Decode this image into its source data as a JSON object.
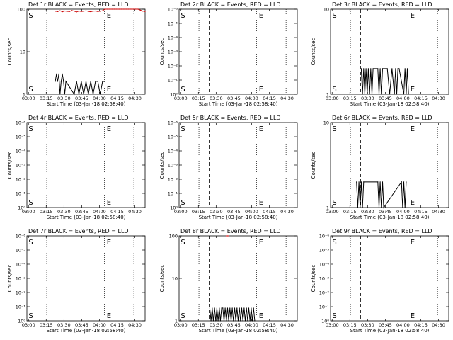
{
  "chart_data": [
    {
      "type": "line",
      "title": "Det 1r BLACK = Events, RED = LLD",
      "xlabel": "Start Time (03-Jan-18 02:58:40)",
      "ylabel": "Counts/sec",
      "ylog": true,
      "ylim": [
        1,
        100
      ],
      "yticks": [
        "1",
        "10",
        "100"
      ],
      "xticks": [
        "03:00",
        "03:15",
        "03:30",
        "03:45",
        "04:00",
        "04:15",
        "04:30"
      ],
      "xlim_min": [
        0,
        100
      ],
      "dotted_lines_min": [
        16.8,
        65.5,
        90.5
      ],
      "dashed_lines_min": [
        25.5
      ],
      "markers": [
        {
          "label": "S",
          "x_min": 0.2
        },
        {
          "label": "E",
          "x_min": 67.5
        }
      ],
      "series": [
        {
          "name": "Events",
          "color": "#000000",
          "x": [
            24,
            25,
            26,
            27,
            28,
            29,
            30,
            31,
            32,
            33,
            40,
            42,
            44,
            46,
            48,
            50,
            52,
            54,
            56,
            58,
            60,
            62,
            64,
            65
          ],
          "y": [
            2,
            3,
            2,
            3,
            1,
            2,
            3,
            2,
            1,
            2,
            1,
            2,
            1,
            2,
            1,
            2,
            1,
            2,
            1,
            2,
            2,
            1,
            2,
            2
          ]
        },
        {
          "name": "LLD",
          "color": "#cc0000",
          "x": [
            24,
            26,
            28,
            30,
            32,
            34,
            36,
            38,
            40,
            42,
            44,
            46,
            48,
            50,
            52,
            54,
            56,
            58,
            60,
            62,
            64,
            66,
            68,
            70,
            72,
            74,
            76,
            78,
            80,
            82,
            84,
            86,
            88,
            90,
            92,
            94,
            96,
            98,
            100
          ],
          "y": [
            90,
            88,
            92,
            87,
            91,
            89,
            88,
            93,
            90,
            86,
            91,
            88,
            90,
            92,
            89,
            87,
            90,
            91,
            88,
            90,
            92,
            100,
            100,
            100,
            100,
            100,
            100,
            100,
            100,
            100,
            100,
            100,
            100,
            100,
            100,
            100,
            95,
            90,
            88
          ]
        }
      ]
    },
    {
      "type": "line",
      "title": "Det 2r BLACK = Events, RED = LLD",
      "xlabel": "Start Time (03-Jan-18 02:58:40)",
      "ylabel": "Counts/sec",
      "ylog": true,
      "ylim": [
        0.8,
        1e-06
      ],
      "yticks": [
        "10⁰",
        "10⁻¹",
        "10⁻²",
        "10⁻³",
        "10⁻⁴",
        "10⁻⁵",
        "10⁻⁶"
      ],
      "xticks": [
        "03:00",
        "03:15",
        "03:30",
        "03:45",
        "04:00",
        "04:15",
        "04:30"
      ],
      "xlim_min": [
        0,
        100
      ],
      "dotted_lines_min": [
        16.8,
        65.5,
        90.5
      ],
      "dashed_lines_min": [
        25.5
      ],
      "markers": [
        {
          "label": "S",
          "x_min": 0.2
        },
        {
          "label": "E",
          "x_min": 67.5
        }
      ],
      "series": []
    },
    {
      "type": "line",
      "title": "Det 3r BLACK = Events, RED = LLD",
      "xlabel": "Start Time (03-Jan-18 02:58:40)",
      "ylabel": "Counts/sec",
      "ylog": true,
      "ylim": [
        1,
        10
      ],
      "yticks": [
        "1",
        "10"
      ],
      "xticks": [
        "03:00",
        "03:15",
        "03:30",
        "03:45",
        "04:00",
        "04:15",
        "04:30"
      ],
      "xlim_min": [
        0,
        100
      ],
      "dotted_lines_min": [
        16.8,
        65.5,
        90.5
      ],
      "dashed_lines_min": [
        25.5
      ],
      "markers": [
        {
          "label": "S",
          "x_min": 0.2
        },
        {
          "label": "E",
          "x_min": 67.5
        }
      ],
      "series": [
        {
          "name": "Events",
          "color": "#000000",
          "x": [
            26,
            27,
            28,
            29,
            30,
            31,
            32,
            33,
            34,
            35,
            36,
            40,
            41,
            42,
            43,
            44,
            48,
            50,
            52,
            54,
            55,
            56,
            57,
            58,
            62,
            63,
            64,
            65,
            66
          ],
          "y": [
            2,
            1,
            2,
            1,
            2,
            1,
            2,
            1,
            2,
            1,
            2,
            2,
            1,
            2,
            1,
            2,
            2,
            1,
            2,
            1,
            2,
            1,
            2,
            2,
            1,
            2,
            1,
            2,
            1
          ]
        }
      ]
    },
    {
      "type": "line",
      "title": "Det 4r BLACK = Events, RED = LLD",
      "xlabel": "Start Time (03-Jan-18 02:58:40)",
      "ylabel": "Counts/sec",
      "ylog": true,
      "ylim": [
        0.8,
        1e-06
      ],
      "yticks": [
        "10⁰",
        "10⁻¹",
        "10⁻²",
        "10⁻³",
        "10⁻⁴",
        "10⁻⁵",
        "10⁻⁶"
      ],
      "xticks": [
        "03:00",
        "03:15",
        "03:30",
        "03:45",
        "04:00",
        "04:15",
        "04:30"
      ],
      "xlim_min": [
        0,
        100
      ],
      "dotted_lines_min": [
        16.8,
        65.5,
        90.5
      ],
      "dashed_lines_min": [
        25.5
      ],
      "markers": [
        {
          "label": "S",
          "x_min": 0.2
        },
        {
          "label": "E",
          "x_min": 67.5
        }
      ],
      "series": []
    },
    {
      "type": "line",
      "title": "Det 5r BLACK = Events, RED = LLD",
      "xlabel": "Start Time (03-Jan-18 02:58:40)",
      "ylabel": "Counts/sec",
      "ylog": true,
      "ylim": [
        0.8,
        1e-06
      ],
      "yticks": [
        "10⁰",
        "10⁻¹",
        "10⁻²",
        "10⁻³",
        "10⁻⁴",
        "10⁻⁵",
        "10⁻⁶"
      ],
      "xticks": [
        "03:00",
        "03:15",
        "03:30",
        "03:45",
        "04:00",
        "04:15",
        "04:30"
      ],
      "xlim_min": [
        0,
        100
      ],
      "dotted_lines_min": [
        16.8,
        65.5,
        90.5
      ],
      "dashed_lines_min": [
        25.5
      ],
      "markers": [
        {
          "label": "S",
          "x_min": 0.2
        },
        {
          "label": "E",
          "x_min": 67.5
        }
      ],
      "series": []
    },
    {
      "type": "line",
      "title": "Det 6r BLACK = Events, RED = LLD",
      "xlabel": "Start Time (03-Jan-18 02:58:40)",
      "ylabel": "Counts/sec",
      "ylog": true,
      "ylim": [
        1,
        10
      ],
      "yticks": [
        "1",
        "10"
      ],
      "xticks": [
        "03:00",
        "03:15",
        "03:30",
        "03:45",
        "04:00",
        "04:15",
        "04:30"
      ],
      "xlim_min": [
        0,
        100
      ],
      "dotted_lines_min": [
        16.8,
        65.5,
        90.5
      ],
      "dashed_lines_min": [
        25.5
      ],
      "markers": [
        {
          "label": "S",
          "x_min": 0.2
        },
        {
          "label": "E",
          "x_min": 67.5
        }
      ],
      "series": [
        {
          "name": "Events",
          "color": "#000000",
          "x": [
            22,
            23,
            24,
            25,
            26,
            27,
            28,
            40,
            41,
            42,
            43,
            44,
            45,
            60,
            61,
            62,
            63,
            64
          ],
          "y": [
            2,
            1,
            2,
            1,
            2,
            1,
            2,
            2,
            1,
            2,
            1,
            2,
            1,
            2,
            1,
            2,
            1,
            2
          ]
        }
      ]
    },
    {
      "type": "line",
      "title": "Det 7r BLACK = Events, RED = LLD",
      "xlabel": "Start Time (03-Jan-18 02:58:40)",
      "ylabel": "Counts/sec",
      "ylog": true,
      "ylim": [
        0.8,
        1e-06
      ],
      "yticks": [
        "10⁰",
        "10⁻¹",
        "10⁻²",
        "10⁻³",
        "10⁻⁴",
        "10⁻⁵",
        "10⁻⁶"
      ],
      "xticks": [
        "03:00",
        "03:15",
        "03:30",
        "03:45",
        "04:00",
        "04:15",
        "04:30"
      ],
      "xlim_min": [
        0,
        100
      ],
      "dotted_lines_min": [
        16.8,
        65.5,
        90.5
      ],
      "dashed_lines_min": [
        25.5
      ],
      "markers": [
        {
          "label": "S",
          "x_min": 0.2
        },
        {
          "label": "E",
          "x_min": 67.5
        }
      ],
      "series": []
    },
    {
      "type": "line",
      "title": "Det 8r BLACK = Events, RED = LLD",
      "xlabel": "Start Time (03-Jan-18 02:58:40)",
      "ylabel": "Counts/sec",
      "ylog": true,
      "ylim": [
        1,
        100
      ],
      "yticks": [
        "1",
        "10",
        "100"
      ],
      "xticks": [
        "03:00",
        "03:15",
        "03:30",
        "03:45",
        "04:00",
        "04:15",
        "04:30"
      ],
      "xlim_min": [
        0,
        100
      ],
      "dotted_lines_min": [
        16.8,
        65.5,
        90.5
      ],
      "dashed_lines_min": [
        25.5
      ],
      "markers": [
        {
          "label": "S",
          "x_min": 0.2
        },
        {
          "label": "E",
          "x_min": 67.5
        }
      ],
      "series": [
        {
          "name": "Events",
          "color": "#000000",
          "x": [
            26,
            27,
            28,
            29,
            30,
            31,
            32,
            33,
            34,
            35,
            36,
            37,
            38,
            39,
            40,
            41,
            42,
            43,
            44,
            45,
            46,
            47,
            48,
            49,
            50,
            51,
            52,
            53,
            54,
            55,
            56,
            57,
            58,
            59,
            60,
            61,
            62,
            63,
            64
          ],
          "y": [
            2,
            1,
            2,
            1,
            2,
            1,
            2,
            1,
            2,
            1,
            2,
            2,
            1,
            2,
            1,
            2,
            1,
            2,
            1,
            2,
            1,
            2,
            1,
            2,
            1,
            2,
            1,
            2,
            1,
            2,
            1,
            2,
            1,
            2,
            1,
            2,
            1,
            2,
            1
          ]
        },
        {
          "name": "LLD",
          "color": "#cc0000",
          "x": [
            40,
            41,
            42
          ],
          "y": [
            100,
            100,
            100
          ]
        }
      ]
    },
    {
      "type": "line",
      "title": "Det 9r BLACK = Events, RED = LLD",
      "xlabel": "Start Time (03-Jan-18 02:58:40)",
      "ylabel": "Counts/sec",
      "ylog": true,
      "ylim": [
        0.8,
        1e-06
      ],
      "yticks": [
        "10⁰",
        "10⁻¹",
        "10⁻²",
        "10⁻³",
        "10⁻⁴",
        "10⁻⁵",
        "10⁻⁶"
      ],
      "xticks": [
        "03:00",
        "03:15",
        "03:30",
        "03:45",
        "04:00",
        "04:15",
        "04:30"
      ],
      "xlim_min": [
        0,
        100
      ],
      "dotted_lines_min": [
        16.8,
        65.5,
        90.5
      ],
      "dashed_lines_min": [
        25.5
      ],
      "markers": [
        {
          "label": "S",
          "x_min": 0.2
        },
        {
          "label": "E",
          "x_min": 67.5
        }
      ],
      "series": []
    }
  ]
}
